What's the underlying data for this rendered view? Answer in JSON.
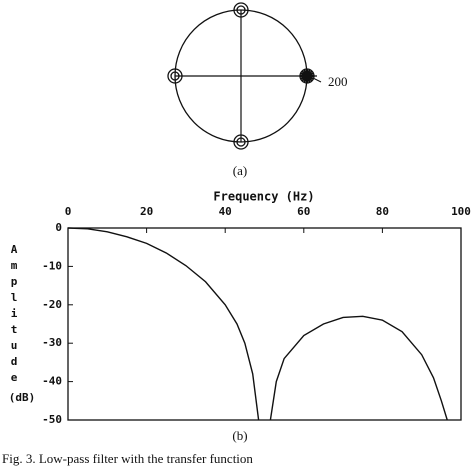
{
  "chart_data": [
    {
      "type": "pole-zero",
      "caption": "(a)",
      "annotation": "200",
      "xlim": [
        -1,
        1
      ],
      "ylim": [
        -1,
        1
      ],
      "zeros": {
        "x": [
          0,
          0,
          -1,
          1
        ],
        "y": [
          1,
          -1,
          0,
          0
        ]
      },
      "poles": {
        "x": [
          1
        ],
        "y": [
          0
        ]
      }
    },
    {
      "type": "line",
      "caption": "(b)",
      "x_label": "Frequency (Hz)",
      "y_label": "Amplitude",
      "y_unit": "(dB)",
      "xlim": [
        0,
        100
      ],
      "ylim": [
        -50,
        0
      ],
      "xticks": [
        0,
        20,
        40,
        60,
        80,
        100
      ],
      "yticks": [
        0,
        -10,
        -20,
        -30,
        -40,
        -50
      ],
      "x": [
        0,
        5,
        10,
        15,
        20,
        25,
        30,
        35,
        40,
        43,
        45,
        47,
        48.5,
        50,
        51.5,
        53,
        55,
        60,
        65,
        70,
        75,
        80,
        85,
        90,
        93,
        95,
        96.5
      ],
      "values": [
        0,
        -0.2,
        -1,
        -2.3,
        -4,
        -6.5,
        -9.8,
        -14,
        -20,
        -25,
        -30,
        -38,
        -50,
        null,
        -50,
        -40,
        -34,
        -28,
        -25,
        -23.3,
        -23,
        -24,
        -27,
        -33,
        -39,
        -45,
        -50
      ],
      "color": "#111"
    }
  ],
  "caption": "Fig. 3.  Low-pass filter with the transfer function"
}
